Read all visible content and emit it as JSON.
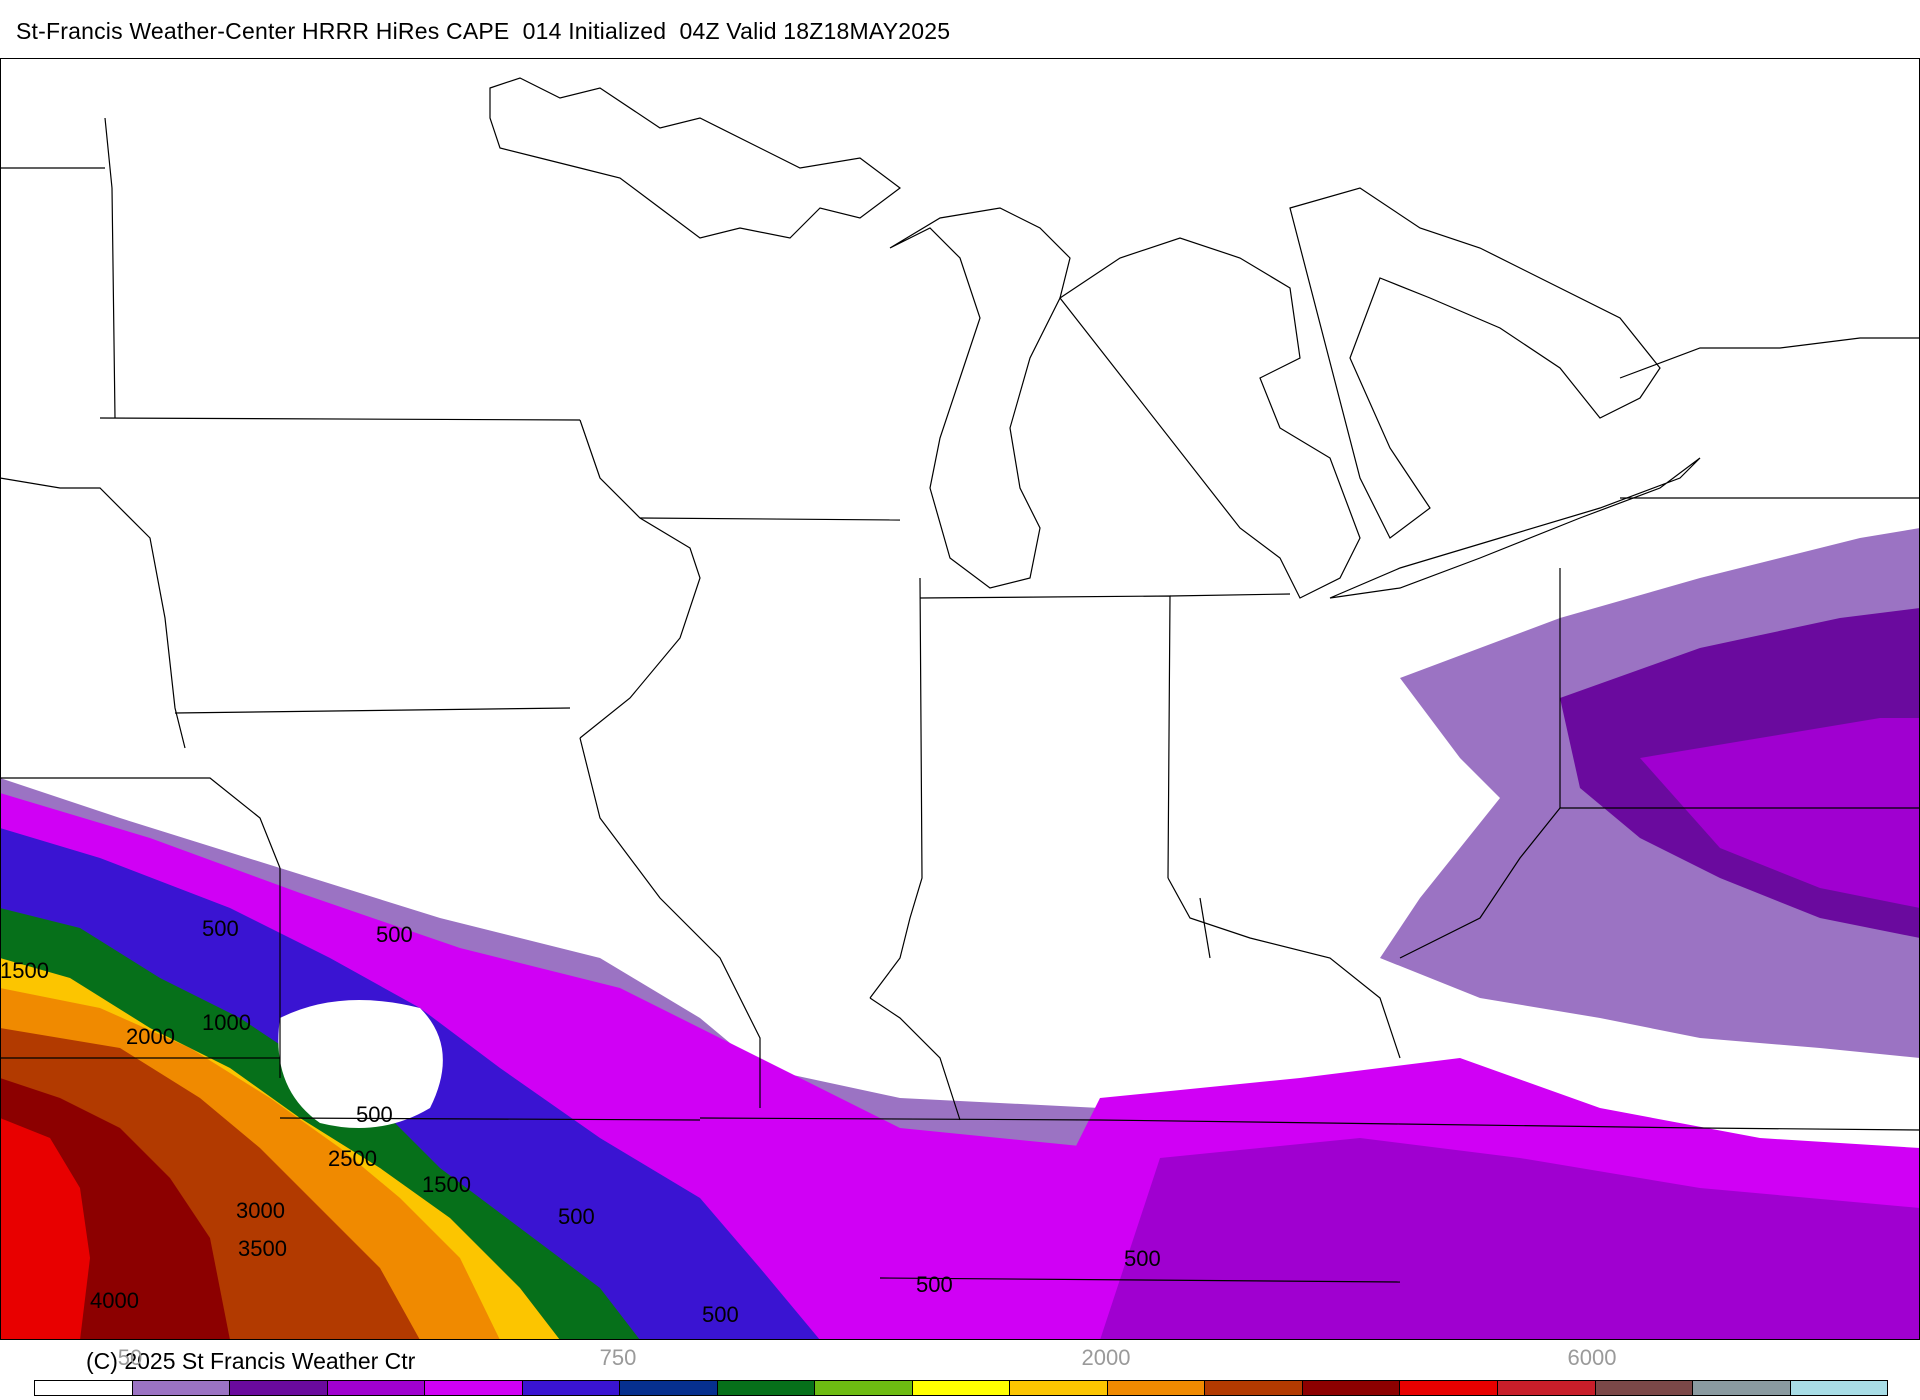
{
  "header": {
    "title": "St-Francis Weather-Center HRRR HiRes CAPE  014 Initialized  04Z Valid 18Z18MAY2025"
  },
  "footer": {
    "copyright": "(C) 2025 St Francis Weather Ctr"
  },
  "colorbar": {
    "colors": [
      "#ffffff",
      "#9b73c3",
      "#6a0a9e",
      "#a000d0",
      "#d000f5",
      "#3a14d2",
      "#06308f",
      "#06701a",
      "#6dbb12",
      "#ffff00",
      "#fcc500",
      "#f08a00",
      "#b23a00",
      "#8c0000",
      "#e80000",
      "#c81e2a",
      "#7b4848",
      "#8a9aa0",
      "#a8dde6"
    ],
    "tick_labels": [
      "50",
      "750",
      "2000",
      "6000"
    ]
  },
  "map": {
    "contour_labels": [
      "500",
      "500",
      "1500",
      "1000",
      "2000",
      "500",
      "2500",
      "1500",
      "3000",
      "500",
      "3500",
      "4000",
      "500",
      "500",
      "500"
    ]
  }
}
